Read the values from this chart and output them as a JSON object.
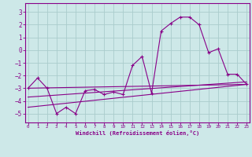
{
  "xlabel": "Windchill (Refroidissement éolien,°C)",
  "background_color": "#cde8e8",
  "grid_color": "#aacccc",
  "line_color": "#880088",
  "spine_color": "#880088",
  "x_ticks": [
    0,
    1,
    2,
    3,
    4,
    5,
    6,
    7,
    8,
    9,
    10,
    11,
    12,
    13,
    14,
    15,
    16,
    17,
    18,
    19,
    20,
    21,
    22,
    23
  ],
  "y_ticks": [
    -5,
    -4,
    -3,
    -2,
    -1,
    0,
    1,
    2,
    3
  ],
  "xlim": [
    -0.3,
    23.3
  ],
  "ylim": [
    -5.7,
    3.7
  ],
  "series1_x": [
    0,
    1,
    2,
    3,
    4,
    5,
    6,
    7,
    8,
    9,
    10,
    11,
    12,
    13,
    14,
    15,
    16,
    17,
    18,
    19,
    20,
    21,
    22,
    23
  ],
  "series1_y": [
    -3.0,
    -2.2,
    -3.0,
    -5.0,
    -4.5,
    -5.0,
    -3.2,
    -3.1,
    -3.5,
    -3.3,
    -3.5,
    -1.2,
    -0.5,
    -3.4,
    1.5,
    2.1,
    2.6,
    2.6,
    2.0,
    -0.2,
    0.1,
    -1.9,
    -1.9,
    -2.7
  ],
  "series2_x": [
    0,
    23
  ],
  "series2_y": [
    -3.0,
    -2.7
  ],
  "series3_x": [
    0,
    23
  ],
  "series3_y": [
    -3.7,
    -2.5
  ],
  "series4_x": [
    0,
    23
  ],
  "series4_y": [
    -4.5,
    -2.7
  ]
}
